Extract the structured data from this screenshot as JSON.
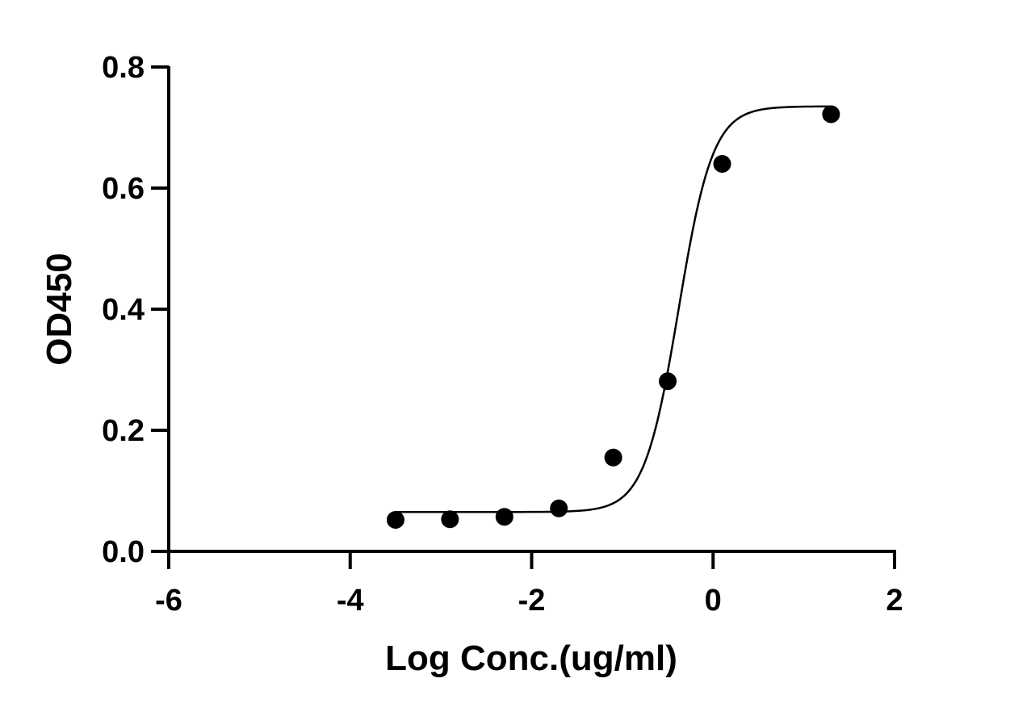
{
  "chart_data": {
    "type": "scatter",
    "xlabel": "Log Conc.(ug/ml)",
    "ylabel": "OD450",
    "xlim": [
      -6,
      2
    ],
    "ylim": [
      0,
      0.8
    ],
    "xticks": [
      -6,
      -4,
      -2,
      0,
      2
    ],
    "yticks": [
      0.0,
      0.2,
      0.4,
      0.6,
      0.8
    ],
    "xtick_labels": [
      "-6",
      "-4",
      "-2",
      "0",
      "2"
    ],
    "ytick_labels": [
      "0.0",
      "0.2",
      "0.4",
      "0.6",
      "0.8"
    ],
    "grid": false,
    "series": [
      {
        "x": [
          -3.5,
          -2.9,
          -2.3,
          -1.7,
          -1.1,
          -0.5,
          0.1,
          1.3
        ],
        "y": [
          0.052,
          0.053,
          0.057,
          0.071,
          0.155,
          0.281,
          0.64,
          0.722
        ]
      }
    ],
    "fit": {
      "model": "4PL",
      "bottom": 0.065,
      "top": 0.735,
      "logEC50": -0.38,
      "hill": 2.3
    },
    "colors": {
      "marker": "#000000",
      "line": "#000000",
      "axis": "#000000"
    }
  }
}
